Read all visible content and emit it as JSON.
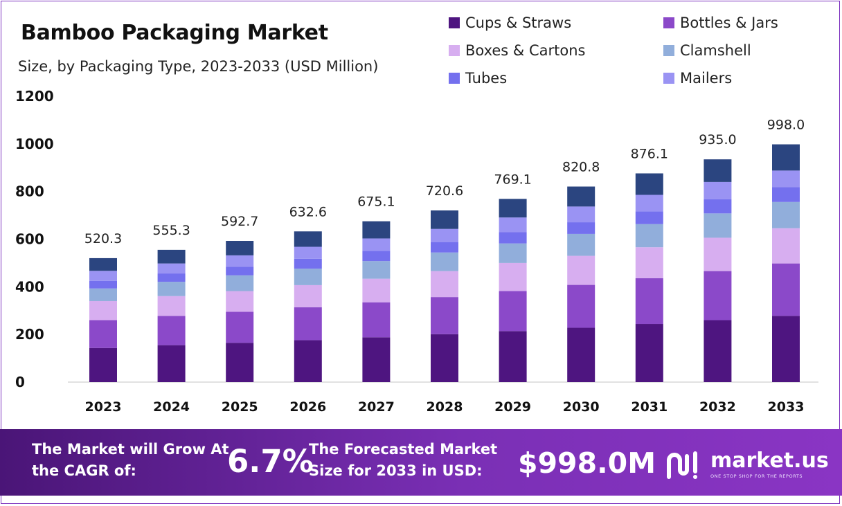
{
  "colors": {
    "cups_straws": "#4e1580",
    "bottles_jars": "#8b49c9",
    "boxes_cartons": "#d7aef0",
    "clamshell": "#91aedb",
    "tubes": "#7470ee",
    "mailers": "#9a93f3",
    "top_segment": "#2b4580",
    "footer_accent": "#7a2fb5"
  },
  "legend": [
    {
      "label": "Cups & Straws",
      "color": "#4e1580",
      "icon": "square-swatch"
    },
    {
      "label": "Bottles & Jars",
      "color": "#8b49c9",
      "icon": "square-swatch"
    },
    {
      "label": "Boxes & Cartons",
      "color": "#d7aef0",
      "icon": "square-swatch"
    },
    {
      "label": "Clamshell",
      "color": "#91aedb",
      "icon": "square-swatch"
    },
    {
      "label": "Tubes",
      "color": "#7470ee",
      "icon": "square-swatch"
    },
    {
      "label": "Mailers",
      "color": "#9a93f3",
      "icon": "square-swatch"
    }
  ],
  "chart_data": {
    "type": "bar",
    "stacked": true,
    "title": "Bamboo Packaging Market",
    "subtitle": "Size, by Packaging Type, 2023-2033 (USD Million)",
    "xlabel": "",
    "ylabel": "",
    "ylim": [
      0,
      1200
    ],
    "yticks": [
      0,
      200,
      400,
      600,
      800,
      1000,
      1200
    ],
    "grid": false,
    "legend_position": "top-right",
    "categories": [
      "2023",
      "2024",
      "2025",
      "2026",
      "2027",
      "2028",
      "2029",
      "2030",
      "2031",
      "2032",
      "2033"
    ],
    "totals": [
      520.3,
      555.3,
      592.7,
      632.6,
      675.1,
      720.6,
      769.1,
      820.8,
      876.1,
      935.0,
      998.0
    ],
    "total_labels": [
      "520.3",
      "555.3",
      "592.7",
      "632.6",
      "675.1",
      "720.6",
      "769.1",
      "820.8",
      "876.1",
      "935.0",
      "998.0"
    ],
    "series": [
      {
        "name": "Cups & Straws",
        "color": "#4e1580",
        "values": [
          143,
          155,
          165,
          176,
          188,
          201,
          214,
          228,
          244,
          260,
          278
        ]
      },
      {
        "name": "Bottles & Jars",
        "color": "#8b49c9",
        "values": [
          117,
          123,
          130,
          138,
          147,
          156,
          168,
          180,
          192,
          206,
          220
        ]
      },
      {
        "name": "Boxes & Cartons",
        "color": "#d7aef0",
        "values": [
          80,
          83,
          87,
          93,
          99,
          109,
          118,
          122,
          130,
          140,
          148
        ]
      },
      {
        "name": "Clamshell",
        "color": "#91aedb",
        "values": [
          53,
          60,
          66,
          69,
          74,
          78,
          82,
          92,
          97,
          102,
          110
        ]
      },
      {
        "name": "Tubes",
        "color": "#7470ee",
        "values": [
          32,
          35,
          36,
          42,
          43,
          44,
          47,
          49,
          54,
          60,
          62
        ]
      },
      {
        "name": "Mailers",
        "color": "#9a93f3",
        "values": [
          42,
          42,
          48,
          50,
          52,
          55,
          62,
          66,
          69,
          72,
          70
        ]
      },
      {
        "name": "",
        "color": "#2b4580",
        "values": [
          53.3,
          57.3,
          60.7,
          64.6,
          72.1,
          77.6,
          78.1,
          83.8,
          90.1,
          95.0,
          110.0
        ]
      }
    ]
  },
  "footer": {
    "lead_text": "The Market will Grow At the CAGR of:",
    "cagr_value": "6.7%",
    "forecast_text": "The Forecasted Market Size for 2033 in USD:",
    "forecast_value": "$998.0M",
    "brand_name": "market.us",
    "brand_tagline": "ONE STOP SHOP FOR THE REPORTS",
    "brand_icon": "market-us-logo-icon"
  }
}
